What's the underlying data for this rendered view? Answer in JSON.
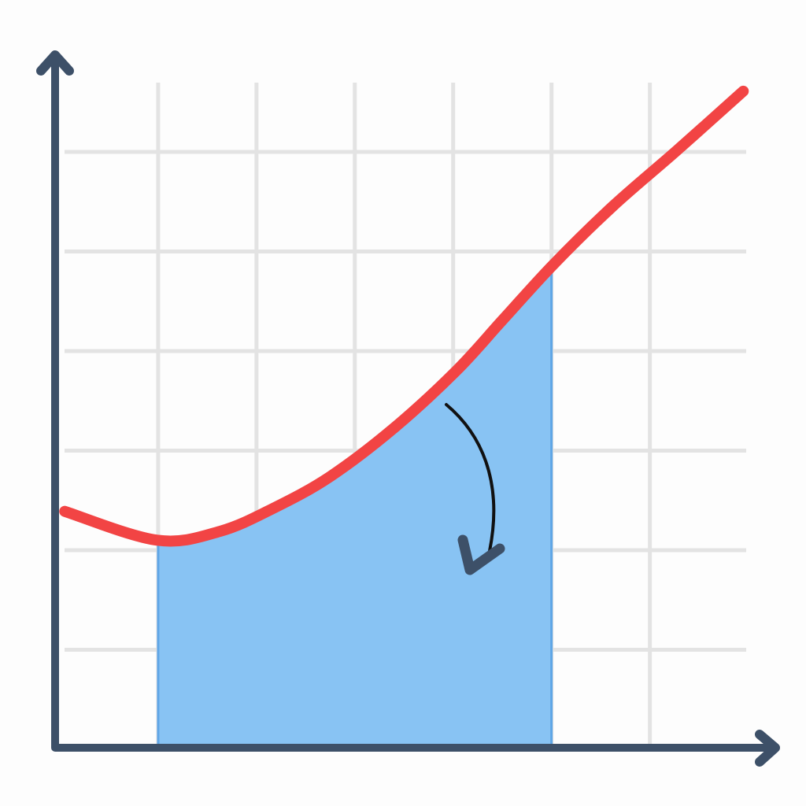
{
  "chart_data": {
    "type": "line",
    "x": [
      0.05,
      0.99,
      1.63,
      2.19,
      2.75,
      3.39,
      4.03,
      4.51,
      5.02,
      5.63,
      6.27,
      6.95
    ],
    "series": [
      {
        "color": "#f24444",
        "values": [
          2.39,
          2.1,
          2.19,
          2.43,
          2.74,
          3.22,
          3.8,
          4.32,
          4.87,
          5.46,
          6.01,
          6.61
        ]
      }
    ],
    "fill_between": [
      1,
      5
    ],
    "fill_color": "#88c3f3",
    "xlim": [
      0,
      7.3
    ],
    "ylim": [
      0,
      7
    ],
    "xticks": [
      1,
      2,
      3,
      4,
      5,
      6
    ],
    "yticks": [
      1,
      2,
      3,
      4,
      5,
      6
    ],
    "grid": true
  }
}
